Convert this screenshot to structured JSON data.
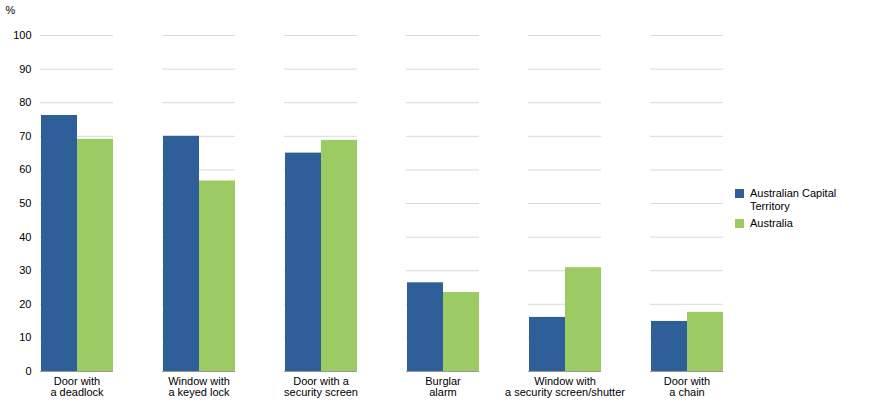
{
  "chart_data": {
    "type": "bar",
    "categories": [
      "Door with\na deadlock",
      "Window with\na keyed lock",
      "Door with a\nsecurity screen",
      "Burglar\nalarm",
      "Window with\na security screen/shutter",
      "Door with\na chain"
    ],
    "series": [
      {
        "name": "Australian Capital Territory",
        "color": "#2e5f99",
        "values": [
          76.2,
          70.0,
          65.0,
          26.4,
          16.1,
          14.9
        ]
      },
      {
        "name": "Australia",
        "color": "#9bcb62",
        "values": [
          69.1,
          56.7,
          68.8,
          23.5,
          30.9,
          17.6
        ]
      }
    ],
    "y_label": "%",
    "ylim": [
      0,
      100
    ],
    "yticks": [
      0,
      10,
      20,
      30,
      40,
      50,
      60,
      70,
      80,
      90,
      100
    ],
    "grid": true,
    "legend": "right"
  }
}
